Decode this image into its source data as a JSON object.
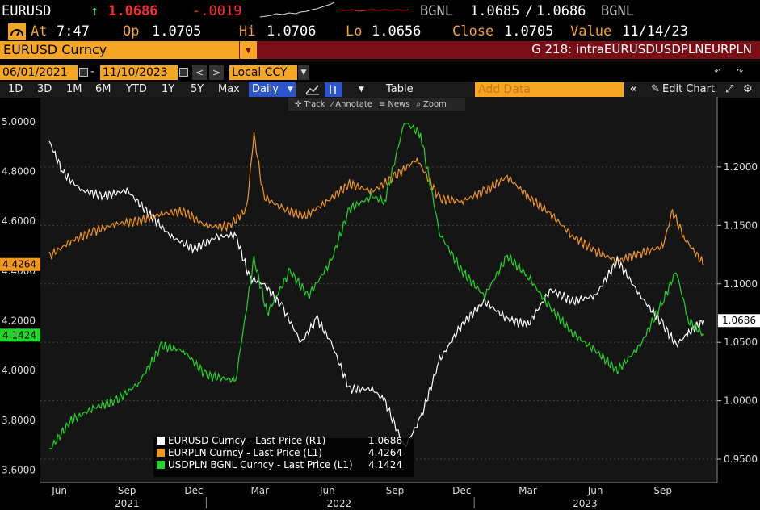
{
  "quote": {
    "ticker": "EURUSD",
    "arrow": "↑",
    "last": "1.0686",
    "change": "-.0019",
    "source1": "BGNL",
    "bid": "1.0685",
    "sep": "/",
    "ask": "1.0686",
    "source2": "BGNL"
  },
  "stats": {
    "at_label": "At",
    "at_value": "7:47",
    "op_label": "Op",
    "op_value": "1.0705",
    "hi_label": "Hi",
    "hi_value": "1.0706",
    "lo_label": "Lo",
    "lo_value": "1.0656",
    "close_label": "Close",
    "close_value": "1.0705",
    "value_label": "Value",
    "value_date": "11/14/23"
  },
  "security": {
    "name": "EURUSD Curncy",
    "title": "G 218: intraEURUSDUSDPLNEURPLN"
  },
  "dates": {
    "start": "06/01/2021",
    "end": "11/10/2023",
    "currency": "Local CCY"
  },
  "toolbar": {
    "ranges": [
      "1D",
      "3D",
      "1M",
      "6M",
      "YTD",
      "1Y",
      "5Y",
      "Max"
    ],
    "period": "Daily",
    "table": "Table",
    "add_data_placeholder": "Add Data",
    "edit_chart": "Edit Chart"
  },
  "subtoolbar": {
    "track": "Track",
    "annotate": "Annotate",
    "news": "News",
    "zoom": "Zoom"
  },
  "chart_data": {
    "type": "line",
    "left_axis": {
      "min": 3.55,
      "max": 5.1,
      "ticks": [
        "3.6000",
        "3.8000",
        "4.0000",
        "4.2000",
        "4.4000",
        "4.6000",
        "4.8000",
        "5.0000"
      ]
    },
    "right_axis": {
      "min": 0.93,
      "max": 1.26,
      "ticks": [
        "0.9500",
        "1.0000",
        "1.0500",
        "1.1000",
        "1.1500",
        "1.2000"
      ]
    },
    "x_labels": [
      "Jun",
      "Sep",
      "Dec",
      "Mar",
      "Jun",
      "Sep",
      "Dec",
      "Mar",
      "Jun",
      "Sep"
    ],
    "year_labels": [
      "2021",
      "2022",
      "2023"
    ],
    "series": [
      {
        "name": "EURUSD Curncy - Last Price (R1)",
        "axis": "right",
        "color": "#ffffff",
        "last_value": "1.0686",
        "points": [
          [
            "2021-06-01",
            1.222
          ],
          [
            "2021-06-20",
            1.195
          ],
          [
            "2021-07-15",
            1.18
          ],
          [
            "2021-08-15",
            1.175
          ],
          [
            "2021-09-15",
            1.18
          ],
          [
            "2021-10-15",
            1.16
          ],
          [
            "2021-11-15",
            1.14
          ],
          [
            "2021-12-15",
            1.13
          ],
          [
            "2022-01-15",
            1.14
          ],
          [
            "2022-02-10",
            1.142
          ],
          [
            "2022-03-01",
            1.105
          ],
          [
            "2022-03-20",
            1.1
          ],
          [
            "2022-04-15",
            1.08
          ],
          [
            "2022-05-10",
            1.05
          ],
          [
            "2022-06-01",
            1.07
          ],
          [
            "2022-06-20",
            1.05
          ],
          [
            "2022-07-15",
            1.01
          ],
          [
            "2022-08-15",
            1.01
          ],
          [
            "2022-09-01",
            1.0
          ],
          [
            "2022-09-28",
            0.96
          ],
          [
            "2022-10-20",
            0.985
          ],
          [
            "2022-11-15",
            1.035
          ],
          [
            "2022-12-15",
            1.065
          ],
          [
            "2023-01-15",
            1.085
          ],
          [
            "2023-02-15",
            1.07
          ],
          [
            "2023-03-15",
            1.065
          ],
          [
            "2023-04-15",
            1.095
          ],
          [
            "2023-05-15",
            1.085
          ],
          [
            "2023-06-15",
            1.09
          ],
          [
            "2023-07-15",
            1.12
          ],
          [
            "2023-08-15",
            1.09
          ],
          [
            "2023-09-15",
            1.065
          ],
          [
            "2023-10-03",
            1.048
          ],
          [
            "2023-10-20",
            1.058
          ],
          [
            "2023-11-10",
            1.0686
          ]
        ]
      },
      {
        "name": "EURPLN Curncy - Last Price (L1)",
        "axis": "left",
        "color": "#f2961e",
        "last_value": "4.4264",
        "points": [
          [
            "2021-06-01",
            4.46
          ],
          [
            "2021-07-01",
            4.52
          ],
          [
            "2021-08-01",
            4.56
          ],
          [
            "2021-09-01",
            4.59
          ],
          [
            "2021-10-01",
            4.6
          ],
          [
            "2021-11-01",
            4.63
          ],
          [
            "2021-12-01",
            4.64
          ],
          [
            "2022-01-01",
            4.58
          ],
          [
            "2022-02-01",
            4.58
          ],
          [
            "2022-02-25",
            4.65
          ],
          [
            "2022-03-07",
            4.95
          ],
          [
            "2022-03-20",
            4.7
          ],
          [
            "2022-04-15",
            4.65
          ],
          [
            "2022-05-15",
            4.62
          ],
          [
            "2022-06-15",
            4.68
          ],
          [
            "2022-07-15",
            4.75
          ],
          [
            "2022-08-15",
            4.72
          ],
          [
            "2022-09-15",
            4.78
          ],
          [
            "2022-10-15",
            4.85
          ],
          [
            "2022-11-15",
            4.69
          ],
          [
            "2022-12-15",
            4.68
          ],
          [
            "2023-01-15",
            4.72
          ],
          [
            "2023-02-15",
            4.78
          ],
          [
            "2023-03-15",
            4.7
          ],
          [
            "2023-04-15",
            4.63
          ],
          [
            "2023-05-15",
            4.54
          ],
          [
            "2023-06-15",
            4.48
          ],
          [
            "2023-07-15",
            4.44
          ],
          [
            "2023-08-15",
            4.47
          ],
          [
            "2023-09-15",
            4.5
          ],
          [
            "2023-09-28",
            4.64
          ],
          [
            "2023-10-15",
            4.53
          ],
          [
            "2023-11-10",
            4.4264
          ]
        ]
      },
      {
        "name": "USDPLN BGNL Curncy - Last Price (L1)",
        "axis": "left",
        "color": "#22d627",
        "last_value": "4.1424",
        "points": [
          [
            "2021-06-01",
            3.68
          ],
          [
            "2021-07-01",
            3.8
          ],
          [
            "2021-08-01",
            3.85
          ],
          [
            "2021-09-01",
            3.88
          ],
          [
            "2021-10-01",
            3.95
          ],
          [
            "2021-11-01",
            4.1
          ],
          [
            "2021-12-01",
            4.08
          ],
          [
            "2022-01-01",
            3.98
          ],
          [
            "2022-02-10",
            3.96
          ],
          [
            "2022-03-07",
            4.45
          ],
          [
            "2022-03-25",
            4.23
          ],
          [
            "2022-04-25",
            4.4
          ],
          [
            "2022-05-20",
            4.3
          ],
          [
            "2022-06-20",
            4.44
          ],
          [
            "2022-07-15",
            4.65
          ],
          [
            "2022-08-15",
            4.7
          ],
          [
            "2022-09-01",
            4.68
          ],
          [
            "2022-09-28",
            5.0
          ],
          [
            "2022-10-20",
            4.95
          ],
          [
            "2022-11-15",
            4.55
          ],
          [
            "2022-12-15",
            4.4
          ],
          [
            "2023-01-15",
            4.3
          ],
          [
            "2023-02-15",
            4.46
          ],
          [
            "2023-03-15",
            4.38
          ],
          [
            "2023-04-15",
            4.25
          ],
          [
            "2023-05-15",
            4.15
          ],
          [
            "2023-06-15",
            4.08
          ],
          [
            "2023-07-15",
            4.0
          ],
          [
            "2023-08-15",
            4.1
          ],
          [
            "2023-09-15",
            4.28
          ],
          [
            "2023-10-03",
            4.4
          ],
          [
            "2023-10-20",
            4.2
          ],
          [
            "2023-11-10",
            4.1424
          ]
        ]
      }
    ]
  },
  "colors": {
    "orange": "#f5a623",
    "maroon": "#7a0e17",
    "green": "#22d627",
    "white": "#ffffff"
  }
}
